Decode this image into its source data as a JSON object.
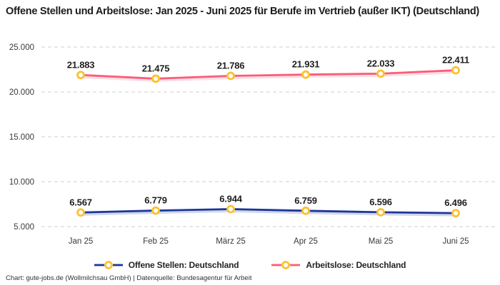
{
  "title": "Offene Stellen und Arbeitslose: Jan 2025 - Juni 2025 für Berufe im Vertrieb (außer IKT) (Deutschland)",
  "footer": "Chart: gute-jobs.de (Wollmilchsau GmbH) | Datenquelle: Bundesagentur für Arbeit",
  "colors": {
    "open_positions_line": "#1e3799",
    "unemployed_line": "#f95e78",
    "marker_ring": "#fcc12e",
    "marker_fill": "#ffffff",
    "gridline": "#cfcfcf",
    "axis_text": "#3a3a3a",
    "data_label_text": "#1f1f1f"
  },
  "chart_data": {
    "type": "line",
    "title": "Offene Stellen und Arbeitslose: Jan 2025 - Juni 2025 für Berufe im Vertrieb (außer IKT) (Deutschland)",
    "categories": [
      "Jan 25",
      "Feb 25",
      "März 25",
      "Apr 25",
      "Mai 25",
      "Juni 25"
    ],
    "series": [
      {
        "name": "Offene Stellen: Deutschland",
        "color_key": "open_positions_line",
        "values": [
          6567,
          6779,
          6944,
          6759,
          6596,
          6496
        ]
      },
      {
        "name": "Arbeitslose: Deutschland",
        "color_key": "unemployed_line",
        "values": [
          21883,
          21475,
          21786,
          21931,
          22033,
          22411
        ]
      }
    ],
    "yticks": [
      5000,
      10000,
      15000,
      20000,
      25000
    ],
    "ylim": [
      4000,
      25500
    ],
    "xlabel": "",
    "ylabel": "",
    "grid": "horizontal-dashed",
    "legend_position": "bottom",
    "thousands_separator": ".",
    "data_labels_visible": true
  }
}
